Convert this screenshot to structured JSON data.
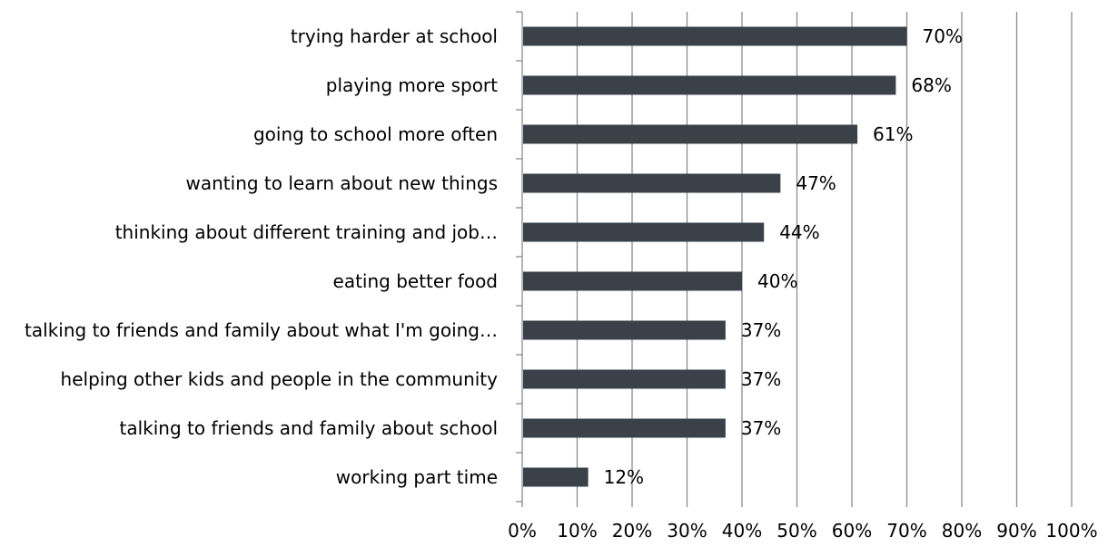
{
  "chart_data": {
    "type": "bar",
    "orientation": "horizontal",
    "categories": [
      "trying harder at school",
      "playing more sport",
      "going to school more often",
      "wanting to learn about new things",
      "thinking about different training and job…",
      "eating better food",
      "talking to friends and family about what I'm going…",
      "helping other kids and people in the community",
      "talking to friends and family about school",
      "working part time"
    ],
    "values": [
      70,
      68,
      61,
      47,
      44,
      40,
      37,
      37,
      37,
      12
    ],
    "data_labels": [
      "70%",
      "68%",
      "61%",
      "47%",
      "44%",
      "40%",
      "37%",
      "37%",
      "37%",
      "12%"
    ],
    "xlim": [
      0,
      100
    ],
    "x_ticks": [
      0,
      10,
      20,
      30,
      40,
      50,
      60,
      70,
      80,
      90,
      100
    ],
    "x_tick_labels": [
      "0%",
      "10%",
      "20%",
      "30%",
      "40%",
      "50%",
      "60%",
      "70%",
      "80%",
      "90%",
      "100%"
    ],
    "grid": "vertical",
    "legend": "none",
    "title": "",
    "xlabel": "",
    "ylabel": "",
    "bar_color": "#3a4149",
    "grid_color": "#8c8c8c",
    "axis_color": "#8c8c8c"
  }
}
